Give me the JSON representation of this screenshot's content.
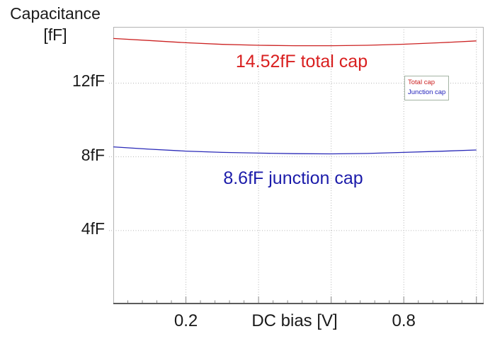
{
  "title": {
    "line1": "Capacitance",
    "line2": "[fF]"
  },
  "colors": {
    "total_cap_curve": "#cc2222",
    "junction_cap_curve": "#2a2ab8",
    "grid": "#b5b5b5",
    "plot_border": "#b3b3b3",
    "axis_line": "#4a4a4a",
    "tick": "#8a8a8a",
    "legend_border": "#a3b3a3",
    "text": "#1a1a1a"
  },
  "y_axis": {
    "ticks": [
      {
        "value": 12,
        "label": "12fF"
      },
      {
        "value": 8,
        "label": "8fF"
      },
      {
        "value": 4,
        "label": "4fF"
      }
    ]
  },
  "x_axis": {
    "label": "DC bias [V]",
    "grid_ticks": [
      0.2,
      0.4,
      0.6,
      0.8,
      1.0
    ],
    "labeled_ticks": [
      {
        "value": 0.2,
        "label": "0.2"
      },
      {
        "value": 0.8,
        "label": "0.8"
      }
    ],
    "minor_tick_step": 0.04
  },
  "annotations": [
    {
      "id": "annotation-total",
      "text": "14.52fF total cap",
      "color": "#d91f1f"
    },
    {
      "id": "annotation-junction",
      "text": "8.6fF junction cap",
      "color": "#1c1caa"
    }
  ],
  "legend": {
    "items": [
      {
        "label": "Total cap",
        "color": "#cc2222"
      },
      {
        "label": "Junction cap",
        "color": "#2222bb"
      }
    ]
  },
  "chart_data": {
    "type": "line",
    "title": "Capacitance vs DC bias",
    "xlabel": "DC bias [V]",
    "ylabel": "Capacitance [fF]",
    "xlim": [
      0,
      1.02
    ],
    "ylim": [
      0,
      15.05
    ],
    "grid": true,
    "legend_position": "upper-right-inside",
    "x": [
      0,
      0.1,
      0.2,
      0.3,
      0.4,
      0.5,
      0.6,
      0.7,
      0.8,
      0.9,
      1.0
    ],
    "series": [
      {
        "name": "Total cap",
        "color": "#cc2222",
        "values": [
          14.42,
          14.31,
          14.19,
          14.1,
          14.05,
          14.03,
          14.03,
          14.05,
          14.11,
          14.19,
          14.29
        ]
      },
      {
        "name": "Junction cap",
        "color": "#2a2ab8",
        "values": [
          8.54,
          8.41,
          8.31,
          8.24,
          8.2,
          8.17,
          8.16,
          8.18,
          8.24,
          8.3,
          8.37
        ]
      }
    ]
  }
}
